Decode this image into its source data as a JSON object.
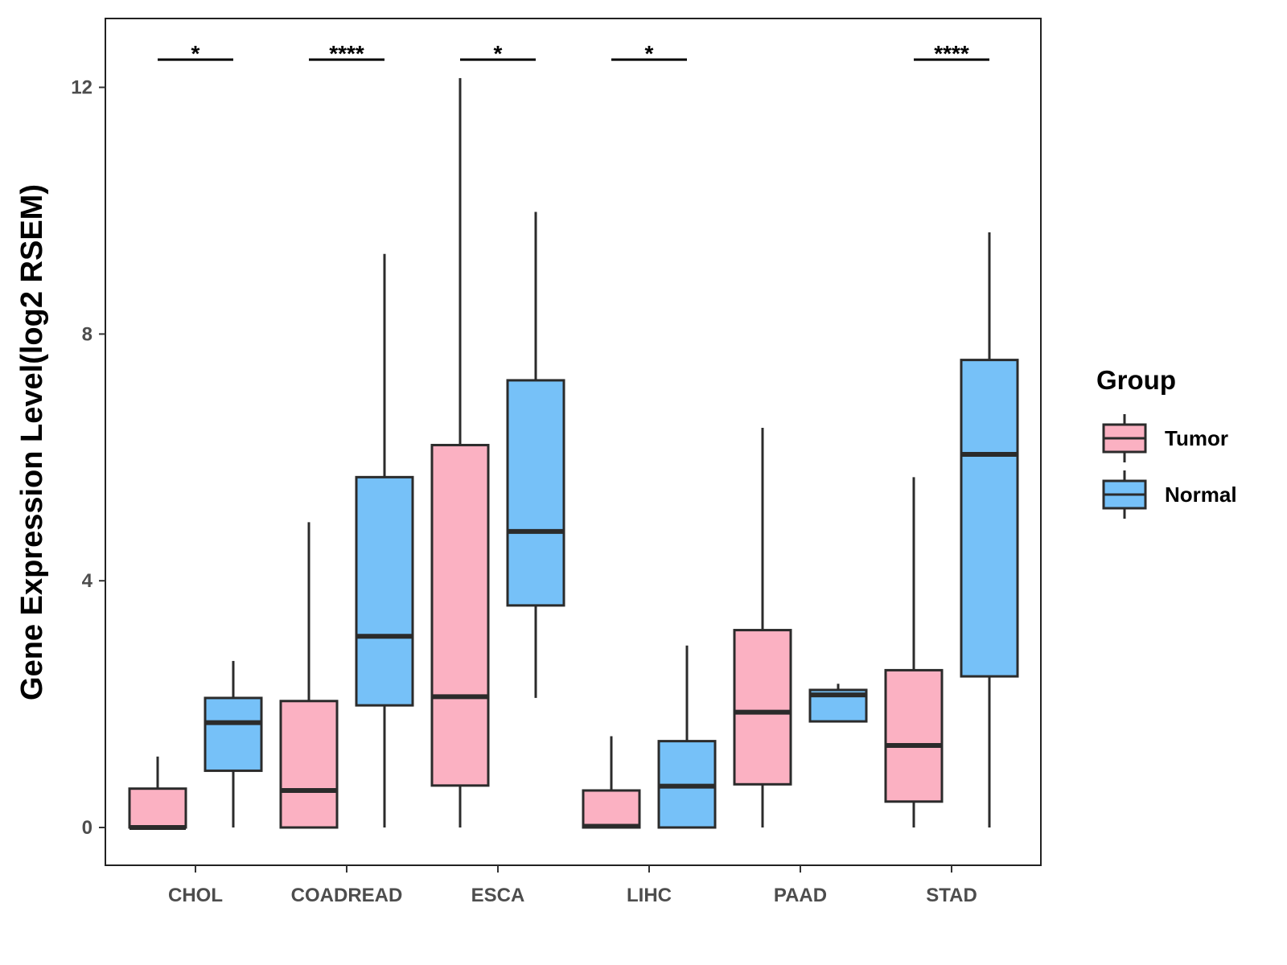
{
  "chart_data": {
    "type": "boxplot",
    "title": "",
    "xlabel": "",
    "ylabel": "Gene Expression Level(log2 RSEM)",
    "ylim": [
      -0.6,
      13.0
    ],
    "yticks": [
      0,
      4,
      8,
      12
    ],
    "ytick_labels": [
      "0",
      "4",
      "8",
      "12"
    ],
    "grid": false,
    "legend": {
      "title": "Group",
      "position": "right",
      "entries": [
        {
          "name": "Tumor",
          "color": "#FBB1C2"
        },
        {
          "name": "Normal",
          "color": "#76C1F8"
        }
      ]
    },
    "categories": [
      "CHOL",
      "COADREAD",
      "ESCA",
      "LIHC",
      "PAAD",
      "STAD"
    ],
    "series": [
      {
        "name": "Tumor",
        "color": "#FBB1C2",
        "boxes": [
          {
            "whisker_low": 0,
            "q1": 0,
            "median": 0,
            "q3": 0.63,
            "whisker_high": 1.15
          },
          {
            "whisker_low": 0,
            "q1": 0,
            "median": 0.6,
            "q3": 2.05,
            "whisker_high": 4.95
          },
          {
            "whisker_low": 0,
            "q1": 0.68,
            "median": 2.12,
            "q3": 6.2,
            "whisker_high": 12.15
          },
          {
            "whisker_low": 0,
            "q1": 0,
            "median": 0.02,
            "q3": 0.6,
            "whisker_high": 1.48
          },
          {
            "whisker_low": 0,
            "q1": 0.7,
            "median": 1.87,
            "q3": 3.2,
            "whisker_high": 6.48
          },
          {
            "whisker_low": 0,
            "q1": 0.42,
            "median": 1.33,
            "q3": 2.55,
            "whisker_high": 5.68
          }
        ]
      },
      {
        "name": "Normal",
        "color": "#76C1F8",
        "boxes": [
          {
            "whisker_low": 0,
            "q1": 0.92,
            "median": 1.7,
            "q3": 2.1,
            "whisker_high": 2.7
          },
          {
            "whisker_low": 0,
            "q1": 1.98,
            "median": 3.1,
            "q3": 5.68,
            "whisker_high": 9.3
          },
          {
            "whisker_low": 2.1,
            "q1": 3.6,
            "median": 4.8,
            "q3": 7.25,
            "whisker_high": 9.98
          },
          {
            "whisker_low": 0,
            "q1": 0,
            "median": 0.67,
            "q3": 1.4,
            "whisker_high": 2.95
          },
          {
            "whisker_low": 1.72,
            "q1": 1.72,
            "median": 2.15,
            "q3": 2.23,
            "whisker_high": 2.33
          },
          {
            "whisker_low": 0,
            "q1": 2.45,
            "median": 6.05,
            "q3": 7.58,
            "whisker_high": 9.65
          }
        ]
      }
    ],
    "significance": [
      {
        "category": "CHOL",
        "label": "*"
      },
      {
        "category": "COADREAD",
        "label": "****"
      },
      {
        "category": "ESCA",
        "label": "*"
      },
      {
        "category": "LIHC",
        "label": "*"
      },
      {
        "category": "PAAD",
        "label": ""
      },
      {
        "category": "STAD",
        "label": "****"
      }
    ],
    "significance_y": 12.45
  }
}
